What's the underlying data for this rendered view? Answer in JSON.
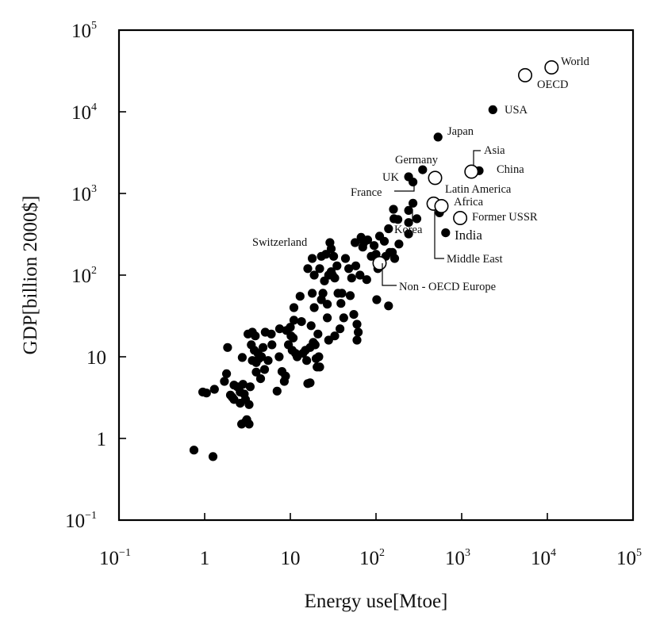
{
  "chart_data": {
    "type": "scatter",
    "xlabel": "Energy use[Mtoe]",
    "ylabel": "GDP[billion 2000$]",
    "xscale": "log",
    "yscale": "log",
    "xlim": [
      0.1,
      100000
    ],
    "ylim": [
      0.1,
      100000
    ],
    "grid": false,
    "x_ticks": [
      {
        "value": 0.1,
        "base": "10",
        "exp": "−1"
      },
      {
        "value": 1,
        "base": "1",
        "exp": ""
      },
      {
        "value": 10,
        "base": "10",
        "exp": ""
      },
      {
        "value": 100,
        "base": "10",
        "exp": "2"
      },
      {
        "value": 1000,
        "base": "10",
        "exp": "3"
      },
      {
        "value": 10000,
        "base": "10",
        "exp": "4"
      },
      {
        "value": 100000,
        "base": "10",
        "exp": "5"
      }
    ],
    "y_ticks": [
      {
        "value": 0.1,
        "base": "10",
        "exp": "−1"
      },
      {
        "value": 1,
        "base": "1",
        "exp": ""
      },
      {
        "value": 10,
        "base": "10",
        "exp": ""
      },
      {
        "value": 100,
        "base": "10",
        "exp": "2"
      },
      {
        "value": 1000,
        "base": "10",
        "exp": "3"
      },
      {
        "value": 10000,
        "base": "10",
        "exp": "4"
      },
      {
        "value": 100000,
        "base": "10",
        "exp": "5"
      }
    ],
    "series": [
      {
        "marker": "filled-circle",
        "color": "#000000",
        "points": [
          [
            0.75,
            0.72
          ],
          [
            1.25,
            0.6
          ],
          [
            0.95,
            3.7
          ],
          [
            1.05,
            3.6
          ],
          [
            1.3,
            4.0
          ],
          [
            1.7,
            5.0
          ],
          [
            1.8,
            6.2
          ],
          [
            1.85,
            13
          ],
          [
            2.0,
            3.4
          ],
          [
            2.1,
            3.2
          ],
          [
            2.2,
            3.0
          ],
          [
            2.2,
            4.5
          ],
          [
            2.4,
            4.3
          ],
          [
            2.6,
            2.7
          ],
          [
            2.6,
            3.7
          ],
          [
            2.7,
            1.5
          ],
          [
            2.75,
            9.8
          ],
          [
            2.8,
            4.6
          ],
          [
            2.9,
            3.5
          ],
          [
            3.0,
            3.0
          ],
          [
            3.0,
            1.6
          ],
          [
            3.1,
            1.7
          ],
          [
            3.2,
            19
          ],
          [
            3.3,
            2.6
          ],
          [
            3.3,
            1.5
          ],
          [
            3.4,
            4.3
          ],
          [
            3.5,
            14
          ],
          [
            3.6,
            9.0
          ],
          [
            3.6,
            20
          ],
          [
            3.8,
            12
          ],
          [
            3.9,
            18
          ],
          [
            4.0,
            6.5
          ],
          [
            4.0,
            8.5
          ],
          [
            4.2,
            11
          ],
          [
            4.3,
            9.5
          ],
          [
            4.5,
            5.4
          ],
          [
            4.6,
            10
          ],
          [
            4.8,
            13
          ],
          [
            5.1,
            20
          ],
          [
            5.0,
            7.0
          ],
          [
            5.5,
            9.0
          ],
          [
            6.0,
            19
          ],
          [
            6.1,
            14
          ],
          [
            7.0,
            3.8
          ],
          [
            7.4,
            10
          ],
          [
            7.5,
            22
          ],
          [
            8.0,
            6.6
          ],
          [
            8.5,
            5.0
          ],
          [
            8.8,
            5.8
          ],
          [
            9.0,
            21
          ],
          [
            9.5,
            14
          ],
          [
            10,
            23
          ],
          [
            10.2,
            18
          ],
          [
            10.5,
            12
          ],
          [
            10.8,
            17
          ],
          [
            11,
            40
          ],
          [
            11,
            28
          ],
          [
            11.5,
            11
          ],
          [
            12,
            10
          ],
          [
            13,
            55
          ],
          [
            13.5,
            27
          ],
          [
            14,
            11
          ],
          [
            15,
            12
          ],
          [
            15.5,
            9.0
          ],
          [
            16,
            4.7
          ],
          [
            16,
            120
          ],
          [
            17,
            13
          ],
          [
            17,
            4.8
          ],
          [
            17.5,
            24
          ],
          [
            18,
            160
          ],
          [
            18,
            60
          ],
          [
            18.5,
            15
          ],
          [
            19,
            100
          ],
          [
            19,
            40
          ],
          [
            19.5,
            14
          ],
          [
            20,
            9.5
          ],
          [
            20.5,
            7.5
          ],
          [
            21,
            19
          ],
          [
            21.5,
            10
          ],
          [
            22,
            120
          ],
          [
            22,
            7.5
          ],
          [
            23,
            170
          ],
          [
            23,
            50
          ],
          [
            24,
            60
          ],
          [
            25,
            85
          ],
          [
            26,
            180
          ],
          [
            27,
            30
          ],
          [
            27,
            44
          ],
          [
            28,
            100
          ],
          [
            28,
            16
          ],
          [
            29,
            250
          ],
          [
            30,
            210
          ],
          [
            30,
            110
          ],
          [
            31,
            100
          ],
          [
            32,
            170
          ],
          [
            33,
            18
          ],
          [
            33,
            92
          ],
          [
            35,
            130
          ],
          [
            36,
            60
          ],
          [
            38,
            22
          ],
          [
            39,
            45
          ],
          [
            40,
            60
          ],
          [
            42,
            30
          ],
          [
            44,
            160
          ],
          [
            48,
            120
          ],
          [
            50,
            56
          ],
          [
            52,
            92
          ],
          [
            55,
            33
          ],
          [
            57,
            250
          ],
          [
            58,
            130
          ],
          [
            60,
            16
          ],
          [
            60,
            25
          ],
          [
            62,
            20
          ],
          [
            65,
            100
          ],
          [
            67,
            290
          ],
          [
            70,
            220
          ],
          [
            72,
            250
          ],
          [
            78,
            88
          ],
          [
            80,
            270
          ],
          [
            88,
            170
          ],
          [
            95,
            230
          ],
          [
            100,
            180
          ],
          [
            102,
            50
          ],
          [
            105,
            120
          ],
          [
            110,
            300
          ],
          [
            125,
            260
          ],
          [
            130,
            170
          ],
          [
            140,
            42
          ],
          [
            145,
            190
          ],
          [
            155,
            190
          ],
          [
            162,
            490
          ],
          [
            165,
            160
          ],
          [
            180,
            480
          ],
          [
            185,
            240
          ],
          [
            240,
            320
          ],
          [
            240,
            440
          ],
          [
            300,
            490
          ],
          [
            550,
            580
          ],
          [
            140,
            370
          ]
        ]
      },
      {
        "marker": "filled-circle",
        "color": "#000000",
        "points": [
          [
            2310,
            10600
          ],
          [
            530,
            4900
          ],
          [
            350,
            1950
          ],
          [
            240,
            1600
          ],
          [
            270,
            1380
          ],
          [
            160,
            640
          ],
          [
            240,
            620
          ],
          [
            270,
            760
          ],
          [
            650,
            330
          ],
          [
            1600,
            1900
          ]
        ]
      },
      {
        "marker": "open-circle",
        "color": "#000000",
        "points": [
          [
            11200,
            35000
          ],
          [
            5500,
            28000
          ],
          [
            1300,
            1850
          ],
          [
            490,
            1550
          ],
          [
            470,
            750
          ],
          [
            580,
            700
          ],
          [
            960,
            500
          ],
          [
            110,
            140
          ]
        ]
      }
    ],
    "annotations": [
      "World",
      "OECD",
      "USA",
      "Japan",
      "Asia",
      "China",
      "Germany",
      "UK",
      "France",
      "Latin America",
      "Africa",
      "Former USSR",
      "Korea",
      "India",
      "Middle East",
      "Switzerland",
      "Non - OECD Europe"
    ]
  }
}
